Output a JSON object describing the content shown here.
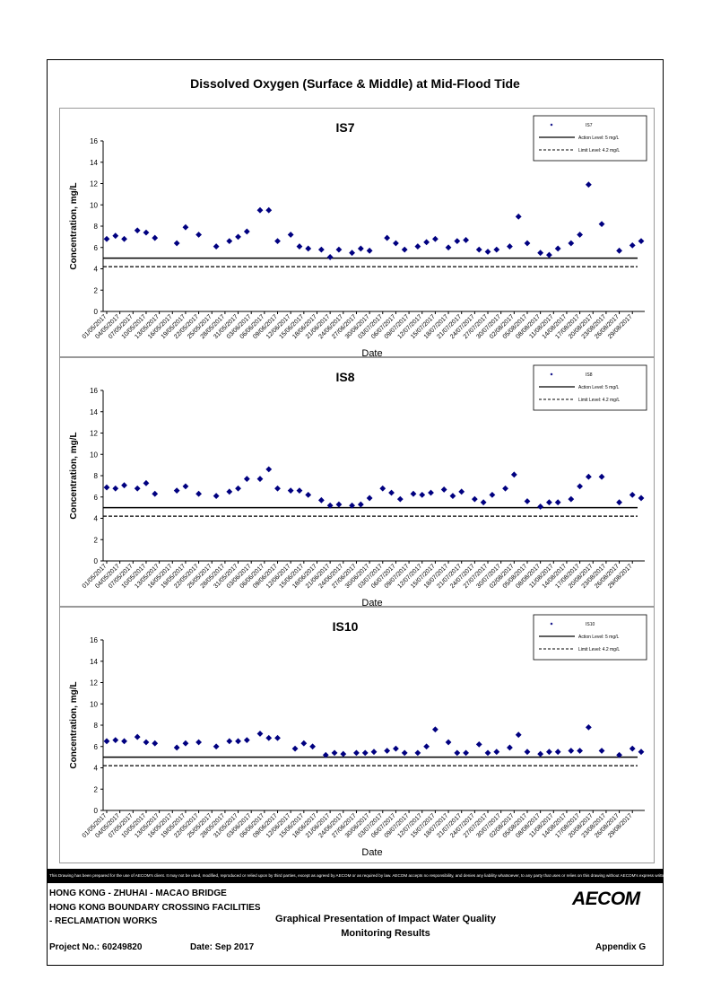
{
  "page": {
    "title": "Dissolved Oxygen (Surface & Middle) at Mid-Flood Tide",
    "disclaimer": "This Drawing has been prepared for the use of AECOM's client. It may not be used, modified, reproduced or relied upon by third parties, except as agreed by AECOM or as required by law. AECOM accepts no responsibility, and denies any liability whatsoever, to any party that uses or relies on this drawing without AECOM's express written consent."
  },
  "footer": {
    "project_line1": "HONG KONG - ZHUHAI - MACAO BRIDGE",
    "project_line2": "HONG KONG BOUNDARY CROSSING FACILITIES",
    "project_line3": "- RECLAMATION WORKS",
    "drawing_title_1": "Graphical Presentation of Impact Water Quality",
    "drawing_title_2": "Monitoring Results",
    "project_no": "Project No.: 60249820",
    "date": "Date: Sep 2017",
    "appendix": "Appendix G",
    "logo": "AECOM"
  },
  "chart_data": [
    {
      "type": "scatter",
      "title": "IS7",
      "xlabel": "Date",
      "ylabel": "Concentration, mg/L",
      "ylim": [
        0,
        16
      ],
      "yticks": [
        0,
        2,
        4,
        6,
        8,
        10,
        12,
        14,
        16
      ],
      "xlim": [
        "01/05/2017",
        "31/08/2017"
      ],
      "xticks": [
        "01/05/2017",
        "04/05/2017",
        "07/05/2017",
        "10/05/2017",
        "13/05/2017",
        "16/05/2017",
        "19/05/2017",
        "22/05/2017",
        "25/05/2017",
        "28/05/2017",
        "31/05/2017",
        "03/06/2017",
        "06/06/2017",
        "09/06/2017",
        "12/06/2017",
        "15/06/2017",
        "18/06/2017",
        "21/06/2017",
        "24/06/2017",
        "27/06/2017",
        "30/06/2017",
        "03/07/2017",
        "06/07/2017",
        "09/07/2017",
        "12/07/2017",
        "15/07/2017",
        "18/07/2017",
        "21/07/2017",
        "24/07/2017",
        "27/07/2017",
        "30/07/2017",
        "02/08/2017",
        "05/08/2017",
        "08/08/2017",
        "11/08/2017",
        "14/08/2017",
        "17/08/2017",
        "20/08/2017",
        "23/08/2017",
        "26/08/2017",
        "29/08/2017"
      ],
      "legend": {
        "placement": "top-right",
        "entries": [
          "IS7",
          "Action Level: 5 mg/L",
          "Limit Level: 4.2 mg/L"
        ]
      },
      "lines": [
        {
          "name": "Action Level: 5 mg/L",
          "y": 5,
          "style": "solid"
        },
        {
          "name": "Limit Level: 4.2 mg/L",
          "y": 4.2,
          "style": "dashed"
        }
      ],
      "series": [
        {
          "name": "IS7",
          "color": "#000080",
          "marker": "diamond",
          "points": [
            [
              "01/05/2017",
              6.8
            ],
            [
              "03/05/2017",
              7.1
            ],
            [
              "05/05/2017",
              6.8
            ],
            [
              "08/05/2017",
              7.6
            ],
            [
              "10/05/2017",
              7.4
            ],
            [
              "12/05/2017",
              6.9
            ],
            [
              "17/05/2017",
              6.4
            ],
            [
              "19/05/2017",
              7.9
            ],
            [
              "22/05/2017",
              7.2
            ],
            [
              "26/05/2017",
              6.1
            ],
            [
              "29/05/2017",
              6.6
            ],
            [
              "31/05/2017",
              7.0
            ],
            [
              "02/06/2017",
              7.5
            ],
            [
              "05/06/2017",
              9.5
            ],
            [
              "07/06/2017",
              9.5
            ],
            [
              "09/06/2017",
              6.6
            ],
            [
              "12/06/2017",
              7.2
            ],
            [
              "14/06/2017",
              6.1
            ],
            [
              "16/06/2017",
              5.9
            ],
            [
              "19/06/2017",
              5.8
            ],
            [
              "21/06/2017",
              5.1
            ],
            [
              "23/06/2017",
              5.8
            ],
            [
              "26/06/2017",
              5.5
            ],
            [
              "28/06/2017",
              5.9
            ],
            [
              "30/06/2017",
              5.7
            ],
            [
              "04/07/2017",
              6.9
            ],
            [
              "06/07/2017",
              6.4
            ],
            [
              "08/07/2017",
              5.8
            ],
            [
              "11/07/2017",
              6.1
            ],
            [
              "13/07/2017",
              6.5
            ],
            [
              "15/07/2017",
              6.8
            ],
            [
              "18/07/2017",
              6.0
            ],
            [
              "20/07/2017",
              6.6
            ],
            [
              "22/07/2017",
              6.7
            ],
            [
              "25/07/2017",
              5.8
            ],
            [
              "27/07/2017",
              5.6
            ],
            [
              "29/07/2017",
              5.8
            ],
            [
              "01/08/2017",
              6.1
            ],
            [
              "03/08/2017",
              8.9
            ],
            [
              "05/08/2017",
              6.4
            ],
            [
              "08/08/2017",
              5.5
            ],
            [
              "10/08/2017",
              5.3
            ],
            [
              "12/08/2017",
              5.9
            ],
            [
              "15/08/2017",
              6.4
            ],
            [
              "17/08/2017",
              7.2
            ],
            [
              "19/08/2017",
              11.9
            ],
            [
              "22/08/2017",
              8.2
            ],
            [
              "26/08/2017",
              5.7
            ],
            [
              "29/08/2017",
              6.2
            ],
            [
              "31/08/2017",
              6.6
            ]
          ]
        }
      ]
    },
    {
      "type": "scatter",
      "title": "IS8",
      "xlabel": "Date",
      "ylabel": "Concentration, mg/L",
      "ylim": [
        0,
        16
      ],
      "yticks": [
        0,
        2,
        4,
        6,
        8,
        10,
        12,
        14,
        16
      ],
      "xlim": [
        "01/05/2017",
        "31/08/2017"
      ],
      "xticks": [
        "01/05/2017",
        "04/05/2017",
        "07/05/2017",
        "10/05/2017",
        "13/05/2017",
        "16/05/2017",
        "19/05/2017",
        "22/05/2017",
        "25/05/2017",
        "28/05/2017",
        "31/05/2017",
        "03/06/2017",
        "06/06/2017",
        "09/06/2017",
        "12/06/2017",
        "15/06/2017",
        "18/06/2017",
        "21/06/2017",
        "24/06/2017",
        "27/06/2017",
        "30/06/2017",
        "03/07/2017",
        "06/07/2017",
        "09/07/2017",
        "12/07/2017",
        "15/07/2017",
        "18/07/2017",
        "21/07/2017",
        "24/07/2017",
        "27/07/2017",
        "30/07/2017",
        "02/08/2017",
        "05/08/2017",
        "08/08/2017",
        "11/08/2017",
        "14/08/2017",
        "17/08/2017",
        "20/08/2017",
        "23/08/2017",
        "26/08/2017",
        "29/08/2017"
      ],
      "legend": {
        "placement": "top-right",
        "entries": [
          "IS8",
          "Action Level: 5 mg/L",
          "Limit Level: 4.2 mg/L"
        ]
      },
      "lines": [
        {
          "name": "Action Level: 5 mg/L",
          "y": 5,
          "style": "solid"
        },
        {
          "name": "Limit Level: 4.2 mg/L",
          "y": 4.2,
          "style": "dashed"
        }
      ],
      "series": [
        {
          "name": "IS8",
          "color": "#000080",
          "marker": "diamond",
          "points": [
            [
              "01/05/2017",
              6.9
            ],
            [
              "03/05/2017",
              6.8
            ],
            [
              "05/05/2017",
              7.1
            ],
            [
              "08/05/2017",
              6.8
            ],
            [
              "10/05/2017",
              7.3
            ],
            [
              "12/05/2017",
              6.3
            ],
            [
              "17/05/2017",
              6.6
            ],
            [
              "19/05/2017",
              7.0
            ],
            [
              "22/05/2017",
              6.3
            ],
            [
              "26/05/2017",
              6.1
            ],
            [
              "29/05/2017",
              6.5
            ],
            [
              "31/05/2017",
              6.8
            ],
            [
              "02/06/2017",
              7.7
            ],
            [
              "05/06/2017",
              7.7
            ],
            [
              "07/06/2017",
              8.6
            ],
            [
              "09/06/2017",
              6.8
            ],
            [
              "12/06/2017",
              6.6
            ],
            [
              "14/06/2017",
              6.6
            ],
            [
              "16/06/2017",
              6.2
            ],
            [
              "19/06/2017",
              5.7
            ],
            [
              "21/06/2017",
              5.2
            ],
            [
              "23/06/2017",
              5.3
            ],
            [
              "26/06/2017",
              5.2
            ],
            [
              "28/06/2017",
              5.3
            ],
            [
              "30/06/2017",
              5.9
            ],
            [
              "03/07/2017",
              6.8
            ],
            [
              "05/07/2017",
              6.4
            ],
            [
              "07/07/2017",
              5.8
            ],
            [
              "10/07/2017",
              6.3
            ],
            [
              "12/07/2017",
              6.2
            ],
            [
              "14/07/2017",
              6.4
            ],
            [
              "17/07/2017",
              6.7
            ],
            [
              "19/07/2017",
              6.1
            ],
            [
              "21/07/2017",
              6.5
            ],
            [
              "24/07/2017",
              5.8
            ],
            [
              "26/07/2017",
              5.5
            ],
            [
              "28/07/2017",
              6.2
            ],
            [
              "31/07/2017",
              6.8
            ],
            [
              "02/08/2017",
              8.1
            ],
            [
              "05/08/2017",
              5.6
            ],
            [
              "08/08/2017",
              5.1
            ],
            [
              "10/08/2017",
              5.5
            ],
            [
              "12/08/2017",
              5.5
            ],
            [
              "15/08/2017",
              5.8
            ],
            [
              "17/08/2017",
              7.0
            ],
            [
              "19/08/2017",
              7.9
            ],
            [
              "22/08/2017",
              7.9
            ],
            [
              "26/08/2017",
              5.5
            ],
            [
              "29/08/2017",
              6.2
            ],
            [
              "31/08/2017",
              5.9
            ]
          ]
        }
      ]
    },
    {
      "type": "scatter",
      "title": "IS10",
      "xlabel": "Date",
      "ylabel": "Concentration, mg/L",
      "ylim": [
        0,
        16
      ],
      "yticks": [
        0,
        2,
        4,
        6,
        8,
        10,
        12,
        14,
        16
      ],
      "xlim": [
        "01/05/2017",
        "31/08/2017"
      ],
      "xticks": [
        "01/05/2017",
        "04/05/2017",
        "07/05/2017",
        "10/05/2017",
        "13/05/2017",
        "16/05/2017",
        "19/05/2017",
        "22/05/2017",
        "25/05/2017",
        "28/05/2017",
        "31/05/2017",
        "03/06/2017",
        "06/06/2017",
        "09/06/2017",
        "12/06/2017",
        "15/06/2017",
        "18/06/2017",
        "21/06/2017",
        "24/06/2017",
        "27/06/2017",
        "30/06/2017",
        "03/07/2017",
        "06/07/2017",
        "09/07/2017",
        "12/07/2017",
        "15/07/2017",
        "18/07/2017",
        "21/07/2017",
        "24/07/2017",
        "27/07/2017",
        "30/07/2017",
        "02/08/2017",
        "05/08/2017",
        "08/08/2017",
        "11/08/2017",
        "14/08/2017",
        "17/08/2017",
        "20/08/2017",
        "23/08/2017",
        "26/08/2017",
        "29/08/2017"
      ],
      "legend": {
        "placement": "top-right",
        "entries": [
          "IS10",
          "Action Level: 5 mg/L",
          "Limit Level: 4.2 mg/L"
        ]
      },
      "lines": [
        {
          "name": "Action Level: 5 mg/L",
          "y": 5,
          "style": "solid"
        },
        {
          "name": "Limit Level: 4.2 mg/L",
          "y": 4.2,
          "style": "dashed"
        }
      ],
      "series": [
        {
          "name": "IS10",
          "color": "#000080",
          "marker": "diamond",
          "points": [
            [
              "01/05/2017",
              6.5
            ],
            [
              "03/05/2017",
              6.6
            ],
            [
              "05/05/2017",
              6.5
            ],
            [
              "08/05/2017",
              6.9
            ],
            [
              "10/05/2017",
              6.4
            ],
            [
              "12/05/2017",
              6.3
            ],
            [
              "17/05/2017",
              5.9
            ],
            [
              "19/05/2017",
              6.3
            ],
            [
              "22/05/2017",
              6.4
            ],
            [
              "26/05/2017",
              6.0
            ],
            [
              "29/05/2017",
              6.5
            ],
            [
              "31/05/2017",
              6.5
            ],
            [
              "02/06/2017",
              6.6
            ],
            [
              "05/06/2017",
              7.2
            ],
            [
              "07/06/2017",
              6.8
            ],
            [
              "09/06/2017",
              6.8
            ],
            [
              "13/06/2017",
              5.8
            ],
            [
              "15/06/2017",
              6.3
            ],
            [
              "17/06/2017",
              6.0
            ],
            [
              "20/06/2017",
              5.2
            ],
            [
              "22/06/2017",
              5.4
            ],
            [
              "24/06/2017",
              5.3
            ],
            [
              "27/06/2017",
              5.4
            ],
            [
              "29/06/2017",
              5.4
            ],
            [
              "01/07/2017",
              5.5
            ],
            [
              "04/07/2017",
              5.6
            ],
            [
              "06/07/2017",
              5.8
            ],
            [
              "08/07/2017",
              5.4
            ],
            [
              "11/07/2017",
              5.4
            ],
            [
              "13/07/2017",
              6.0
            ],
            [
              "15/07/2017",
              7.6
            ],
            [
              "18/07/2017",
              6.4
            ],
            [
              "20/07/2017",
              5.4
            ],
            [
              "22/07/2017",
              5.4
            ],
            [
              "25/07/2017",
              6.2
            ],
            [
              "27/07/2017",
              5.4
            ],
            [
              "29/07/2017",
              5.5
            ],
            [
              "01/08/2017",
              5.9
            ],
            [
              "03/08/2017",
              7.1
            ],
            [
              "05/08/2017",
              5.5
            ],
            [
              "08/08/2017",
              5.3
            ],
            [
              "10/08/2017",
              5.5
            ],
            [
              "12/08/2017",
              5.5
            ],
            [
              "15/08/2017",
              5.6
            ],
            [
              "17/08/2017",
              5.6
            ],
            [
              "19/08/2017",
              7.8
            ],
            [
              "22/08/2017",
              5.6
            ],
            [
              "26/08/2017",
              5.2
            ],
            [
              "29/08/2017",
              5.8
            ],
            [
              "31/08/2017",
              5.5
            ]
          ]
        }
      ]
    }
  ]
}
